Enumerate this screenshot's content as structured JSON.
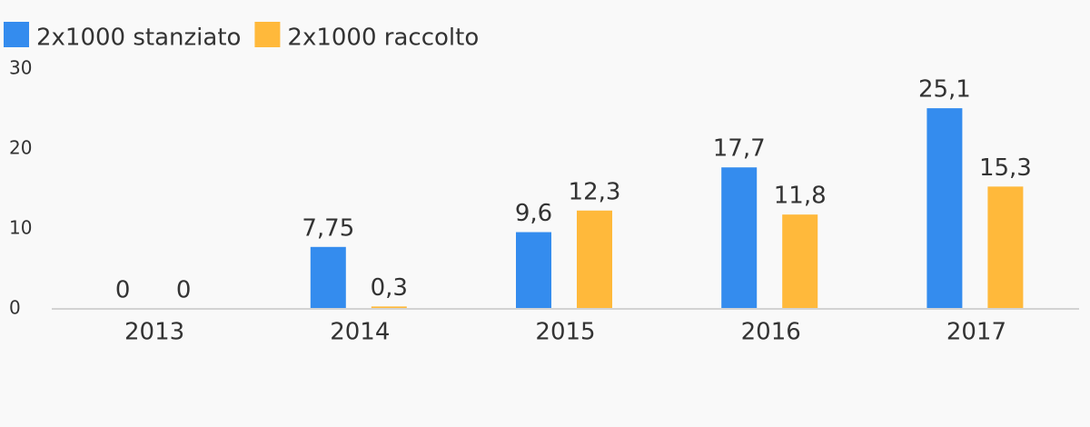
{
  "chart_data": {
    "type": "bar",
    "categories": [
      "2013",
      "2014",
      "2015",
      "2016",
      "2017"
    ],
    "series": [
      {
        "name": "2x1000 stanziato",
        "color": "#348cee",
        "values": [
          0,
          7.75,
          9.6,
          17.7,
          25.1
        ],
        "value_labels": [
          "0",
          "7,75",
          "9,6",
          "17,7",
          "25,1"
        ]
      },
      {
        "name": "2x1000 raccolto",
        "color": "#ffb93b",
        "values": [
          0,
          0.3,
          12.3,
          11.8,
          15.3
        ],
        "value_labels": [
          "0",
          "0,3",
          "12,3",
          "11,8",
          "15,3"
        ]
      }
    ],
    "ylim": [
      0,
      30
    ],
    "yticks": [
      0,
      10,
      20,
      30
    ],
    "grid": false,
    "legend": "top-left"
  }
}
